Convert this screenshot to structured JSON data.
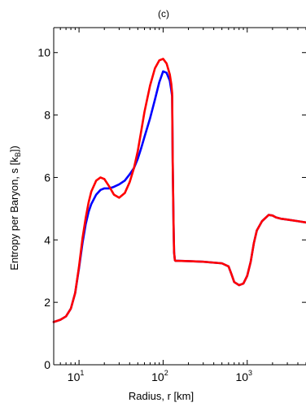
{
  "chart_data": {
    "type": "line",
    "title": "(c)",
    "xlabel": "Radius, r [km]",
    "ylabel_main": "Entropy per Baryon, s [k",
    "ylabel_sub": "B",
    "ylabel_end": "])",
    "xscale": "log",
    "xlim": [
      5,
      5000
    ],
    "ylim": [
      0,
      10.8
    ],
    "grid": false,
    "x_tick_values": [
      10,
      100,
      1000
    ],
    "x_tick_bases": [
      "10",
      "10",
      "10"
    ],
    "x_tick_exponents": [
      "1",
      "2",
      "3"
    ],
    "y_ticks": [
      0,
      2,
      4,
      6,
      8,
      10
    ],
    "y_tick_labels": [
      "0",
      "2",
      "4",
      "6",
      "8",
      "10"
    ],
    "series": [
      {
        "color": "#0000ff",
        "x": [
          5,
          6,
          7,
          8,
          9,
          10,
          11,
          12,
          13,
          14,
          16,
          18,
          20,
          23,
          26,
          30,
          35,
          40,
          45,
          50,
          55,
          60,
          70,
          80,
          90,
          100,
          110,
          120,
          125,
          128,
          130,
          133,
          135,
          138,
          140,
          150,
          200,
          300,
          500,
          600,
          650,
          700,
          800,
          900,
          1000,
          1100,
          1200,
          1300,
          1500,
          1800,
          2000,
          2200,
          2500,
          3000,
          4000,
          5000
        ],
        "y": [
          1.37,
          1.44,
          1.55,
          1.8,
          2.3,
          3.1,
          3.9,
          4.5,
          4.9,
          5.15,
          5.45,
          5.6,
          5.65,
          5.65,
          5.7,
          5.78,
          5.9,
          6.1,
          6.3,
          6.6,
          6.95,
          7.3,
          7.9,
          8.5,
          9.05,
          9.4,
          9.35,
          9.1,
          8.8,
          8.6,
          6.5,
          4.5,
          3.6,
          3.35,
          3.33,
          3.33,
          3.32,
          3.3,
          3.25,
          3.15,
          2.9,
          2.65,
          2.55,
          2.6,
          2.85,
          3.3,
          3.9,
          4.3,
          4.6,
          4.8,
          4.78,
          4.72,
          4.68,
          4.65,
          4.6,
          4.56
        ]
      },
      {
        "color": "#ff0000",
        "x": [
          5,
          6,
          7,
          8,
          9,
          10,
          11,
          12,
          13,
          14,
          16,
          18,
          20,
          23,
          26,
          30,
          35,
          40,
          45,
          50,
          55,
          60,
          70,
          80,
          90,
          100,
          110,
          120,
          125,
          128,
          130,
          133,
          135,
          138,
          140,
          150,
          200,
          300,
          500,
          600,
          650,
          700,
          800,
          900,
          1000,
          1100,
          1200,
          1300,
          1500,
          1800,
          2000,
          2200,
          2500,
          3000,
          4000,
          5000
        ],
        "y": [
          1.37,
          1.44,
          1.55,
          1.8,
          2.3,
          3.15,
          4.05,
          4.7,
          5.2,
          5.55,
          5.9,
          6.0,
          5.95,
          5.7,
          5.45,
          5.35,
          5.5,
          5.85,
          6.3,
          6.85,
          7.5,
          8.1,
          8.95,
          9.5,
          9.75,
          9.8,
          9.65,
          9.3,
          9.0,
          8.7,
          6.5,
          4.5,
          3.6,
          3.35,
          3.33,
          3.33,
          3.32,
          3.3,
          3.25,
          3.15,
          2.9,
          2.65,
          2.55,
          2.6,
          2.85,
          3.3,
          3.9,
          4.3,
          4.6,
          4.8,
          4.78,
          4.72,
          4.68,
          4.65,
          4.6,
          4.56
        ]
      }
    ]
  }
}
